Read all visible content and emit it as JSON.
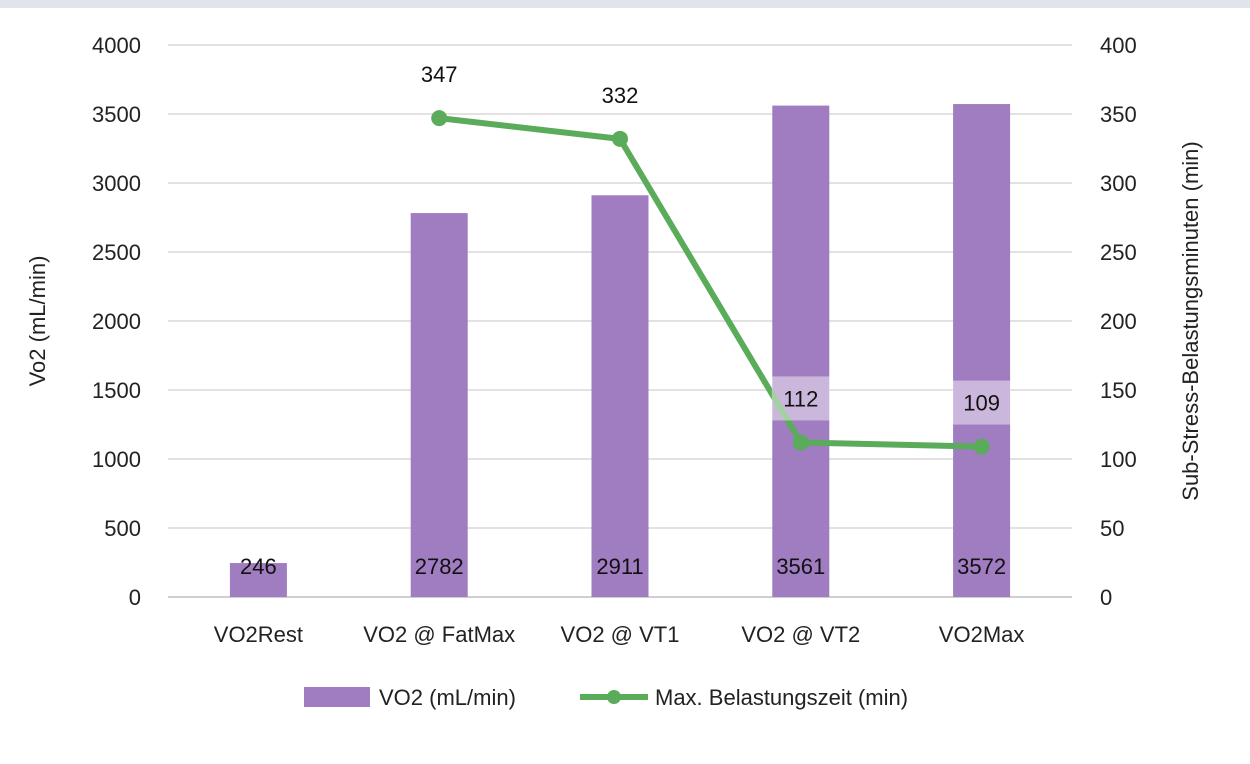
{
  "chart_data": {
    "type": "bar",
    "title": "",
    "categories": [
      "VO2Rest",
      "VO2 @ FatMax",
      "VO2 @ VT1",
      "VO2 @ VT2",
      "VO2Max"
    ],
    "series": [
      {
        "name": "VO2 (mL/min)",
        "type": "bar",
        "axis": "left",
        "color": "#a07cc0",
        "values": [
          246,
          2782,
          2911,
          3561,
          3572
        ],
        "labels": [
          "246",
          "2782",
          "2911",
          "3561",
          "3572"
        ]
      },
      {
        "name": "Max. Belastungszeit (min)",
        "type": "line",
        "axis": "right",
        "color": "#5aac5a",
        "values": [
          null,
          347,
          332,
          112,
          109
        ],
        "labels": [
          null,
          "347",
          "332",
          "112",
          "109"
        ]
      }
    ],
    "ylabel": "Vo2 (mL/min)",
    "y2label": "Sub-Stress-Belastungsminuten (min)",
    "ylim": [
      0,
      4000
    ],
    "y2lim": [
      0,
      400
    ],
    "yticks": [
      "0",
      "500",
      "1000",
      "1500",
      "2000",
      "2500",
      "3000",
      "3500",
      "4000"
    ],
    "y2ticks": [
      "0",
      "50",
      "100",
      "150",
      "200",
      "250",
      "300",
      "350",
      "400"
    ],
    "grid": true,
    "legend": "bottom-center"
  }
}
